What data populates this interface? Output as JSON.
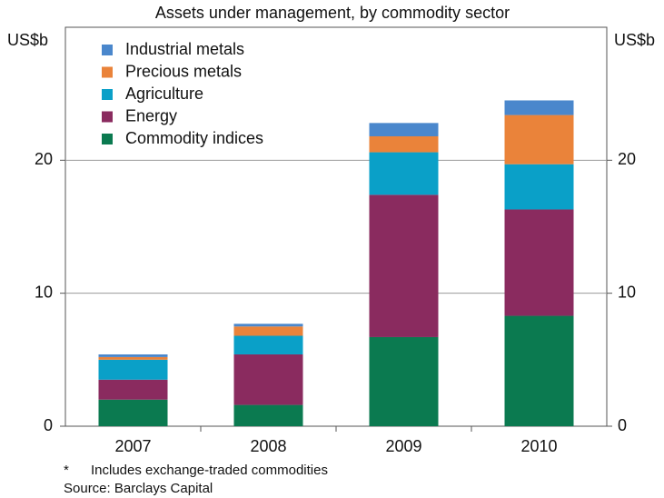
{
  "chart_data": {
    "type": "stacked_bar",
    "title": "Assets under management, by commodity sector",
    "y_unit": "US$b",
    "y2_unit": "US$b",
    "categories": [
      "2007",
      "2008",
      "2009",
      "2010"
    ],
    "series": [
      {
        "name": "Commodity indices",
        "color": "#0b7a50",
        "values": [
          2.0,
          1.6,
          6.7,
          8.3
        ]
      },
      {
        "name": "Energy",
        "color": "#8a2b5f",
        "values": [
          1.5,
          3.8,
          10.7,
          8.0
        ]
      },
      {
        "name": "Agriculture",
        "color": "#0aa0c8",
        "values": [
          1.5,
          1.4,
          3.2,
          3.4
        ]
      },
      {
        "name": "Precious metals",
        "color": "#ea833a",
        "values": [
          0.2,
          0.7,
          1.2,
          3.7
        ]
      },
      {
        "name": "Industrial metals",
        "color": "#4a87cc",
        "values": [
          0.2,
          0.2,
          1.0,
          1.1
        ]
      }
    ],
    "ylim": [
      0,
      30
    ],
    "yticks": [
      0,
      10,
      20
    ],
    "y2lim": [
      0,
      30
    ],
    "y2ticks": [
      0,
      10,
      20
    ],
    "grid": true,
    "legend": "top-left",
    "footnote": {
      "marker": "*",
      "text": "Includes exchange-traded commodities"
    },
    "source": "Source: Barclays Capital"
  }
}
